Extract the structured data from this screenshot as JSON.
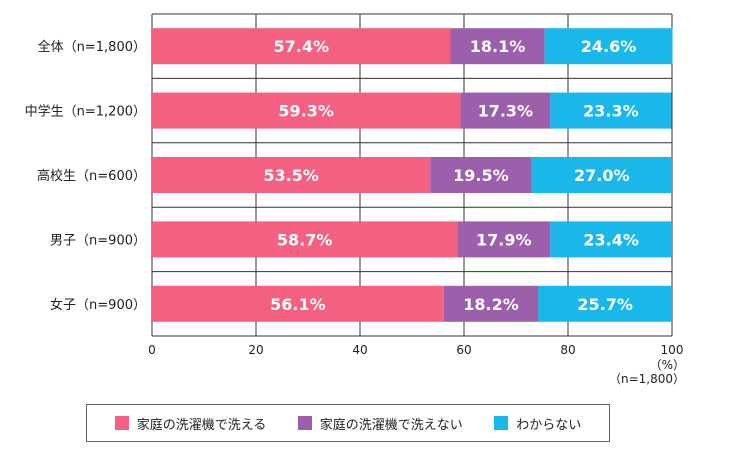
{
  "chart_data": {
    "type": "bar",
    "orientation": "horizontal",
    "stacked": true,
    "categories": [
      "全体（n=1,800）",
      "中学生（n=1,200）",
      "高校生（n=600）",
      "男子（n=900）",
      "女子（n=900）"
    ],
    "series": [
      {
        "name": "家庭の洗濯機で洗える",
        "values": [
          57.4,
          59.3,
          53.5,
          58.7,
          56.1
        ],
        "labels": [
          "57.4%",
          "59.3%",
          "53.5%",
          "58.7%",
          "56.1%"
        ],
        "color": "#f4607f"
      },
      {
        "name": "家庭の洗濯機で洗えない",
        "values": [
          18.1,
          17.3,
          19.5,
          17.9,
          18.2
        ],
        "labels": [
          "18.1%",
          "17.3%",
          "19.5%",
          "17.9%",
          "18.2%"
        ],
        "color": "#9c5fab"
      },
      {
        "name": "わからない",
        "values": [
          24.6,
          23.3,
          27.0,
          23.4,
          25.7
        ],
        "labels": [
          "24.6%",
          "23.3%",
          "27.0%",
          "23.4%",
          "25.7%"
        ],
        "color": "#1ab8ea"
      }
    ],
    "x_ticks": [
      "0",
      "20",
      "40",
      "60",
      "80",
      "100"
    ],
    "xlim": [
      0,
      100
    ],
    "unit_label": "（%）",
    "sample_note": "（n=1,800）",
    "grid": true,
    "legend_position": "bottom"
  }
}
